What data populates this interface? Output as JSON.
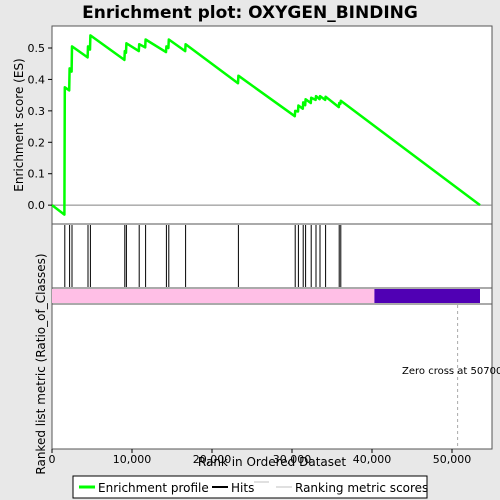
{
  "chart_data": {
    "type": "line",
    "title": "Enrichment plot: OXYGEN_BINDING",
    "xlabel": "Rank in Ordered Dataset",
    "ylabel_top": "Enrichment score (ES)",
    "ylabel_bottom": "Ranked list metric (Ratio_of_Classes)",
    "annotation": "Zero cross at 50700",
    "zero_cross": 50700,
    "xlim": [
      0,
      55000
    ],
    "ylim": [
      -0.06,
      0.57
    ],
    "x_ticks": [
      0,
      10000,
      20000,
      30000,
      40000,
      50000
    ],
    "x_tick_labels": [
      "0",
      "10,000",
      "20,000",
      "30,000",
      "40,000",
      "50,000"
    ],
    "y_ticks": [
      0.0,
      0.1,
      0.2,
      0.3,
      0.4,
      0.5
    ],
    "y_tick_labels": [
      "0.0",
      "0.1",
      "0.2",
      "0.3",
      "0.4",
      "0.5"
    ],
    "total_rank": 53500,
    "hits": [
      1600,
      2200,
      2500,
      4500,
      4800,
      9100,
      9300,
      10900,
      11700,
      14300,
      14600,
      16700,
      23300,
      30400,
      30800,
      31400,
      31700,
      32400,
      33000,
      33500,
      34200,
      35900,
      36100
    ],
    "series": [
      {
        "name": "Enrichment profile",
        "color": "#00ff00",
        "x": [
          0,
          1550,
          1600,
          2150,
          2200,
          2450,
          2500,
          4450,
          4500,
          4750,
          4800,
          9050,
          9100,
          9250,
          9300,
          10850,
          10900,
          11650,
          11700,
          14250,
          14300,
          14550,
          14600,
          16650,
          16700,
          23250,
          23300,
          30350,
          30400,
          30750,
          30800,
          31350,
          31400,
          31650,
          31700,
          32350,
          32400,
          32950,
          33000,
          33450,
          33500,
          34150,
          34200,
          35850,
          35900,
          36050,
          36100,
          53500
        ],
        "y": [
          0.0,
          -0.03,
          0.375,
          0.365,
          0.435,
          0.425,
          0.505,
          0.47,
          0.505,
          0.495,
          0.54,
          0.462,
          0.49,
          0.485,
          0.515,
          0.49,
          0.512,
          0.502,
          0.527,
          0.487,
          0.505,
          0.5,
          0.527,
          0.49,
          0.512,
          0.388,
          0.412,
          0.283,
          0.3,
          0.298,
          0.317,
          0.307,
          0.327,
          0.318,
          0.337,
          0.325,
          0.342,
          0.335,
          0.347,
          0.337,
          0.347,
          0.335,
          0.345,
          0.312,
          0.325,
          0.322,
          0.332,
          0.0
        ]
      }
    ],
    "ranked_metric": {
      "positive_end": 40300,
      "positive_color": "#ffbfe6",
      "negative_color": "#5000b4"
    },
    "legend": {
      "placement": "bottom",
      "items": [
        {
          "label": "Enrichment profile",
          "color": "#00ff00"
        },
        {
          "label": "Hits",
          "color": "#000000"
        },
        {
          "label": "Ranking metric scores",
          "color": "#c0c0c0"
        }
      ]
    }
  }
}
